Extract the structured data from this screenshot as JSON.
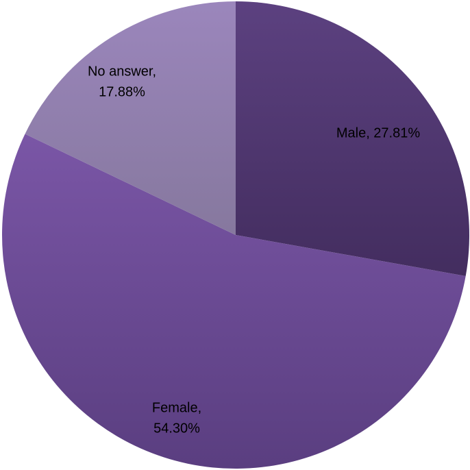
{
  "chart_data": {
    "type": "pie",
    "start_angle_deg": 0,
    "direction": "clockwise",
    "slices": [
      {
        "label": "Male",
        "value": 27.81,
        "label_lines": [
          "Male, 27.81%"
        ],
        "color_light": "#5c4180",
        "color_dark": "#432d5f"
      },
      {
        "label": "Female",
        "value": 54.3,
        "label_lines": [
          "Female,",
          "54.30%"
        ],
        "color_light": "#7a56a6",
        "color_dark": "#5a3e80"
      },
      {
        "label": "No answer",
        "value": 17.88,
        "label_lines": [
          "No answer,",
          "17.88%"
        ],
        "color_light": "#9b86bc",
        "color_dark": "#86789e"
      }
    ]
  }
}
